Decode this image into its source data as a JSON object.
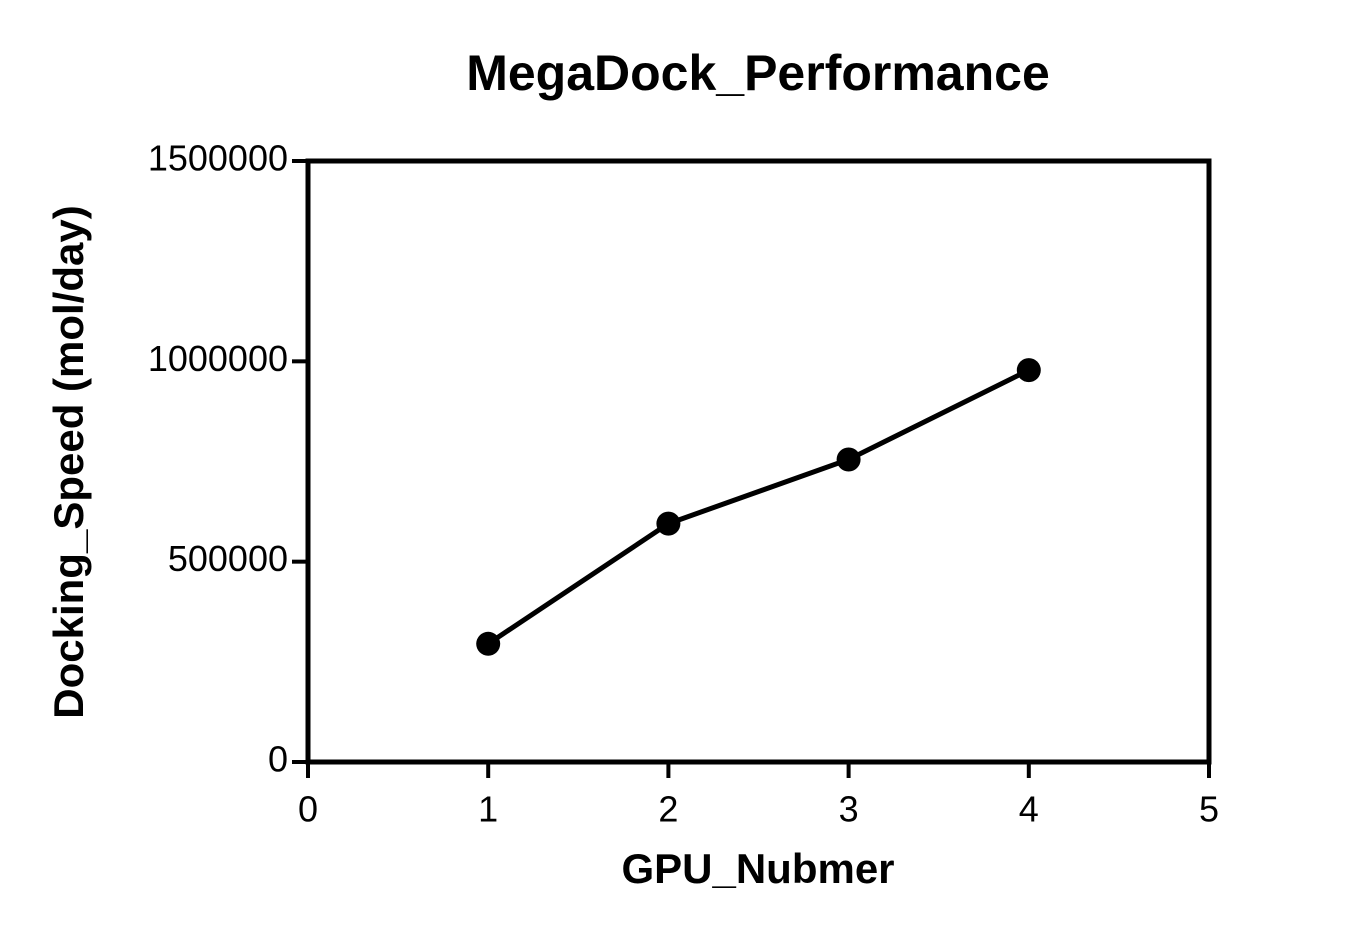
{
  "chart_data": {
    "type": "line",
    "title": "MegaDock_Performance",
    "x_label": "GPU_Nubmer",
    "y_label": "Docking_Speed (mol/day)",
    "x": [
      1,
      2,
      3,
      4
    ],
    "values": [
      295000,
      595000,
      755000,
      978000
    ],
    "color": "#000000",
    "xlim": [
      0,
      5
    ],
    "xticks": [
      0,
      1,
      2,
      3,
      4,
      5
    ],
    "ylim": [
      0,
      1500000
    ],
    "yticks": [
      0,
      500000,
      1000000,
      1500000
    ],
    "grid": false
  }
}
